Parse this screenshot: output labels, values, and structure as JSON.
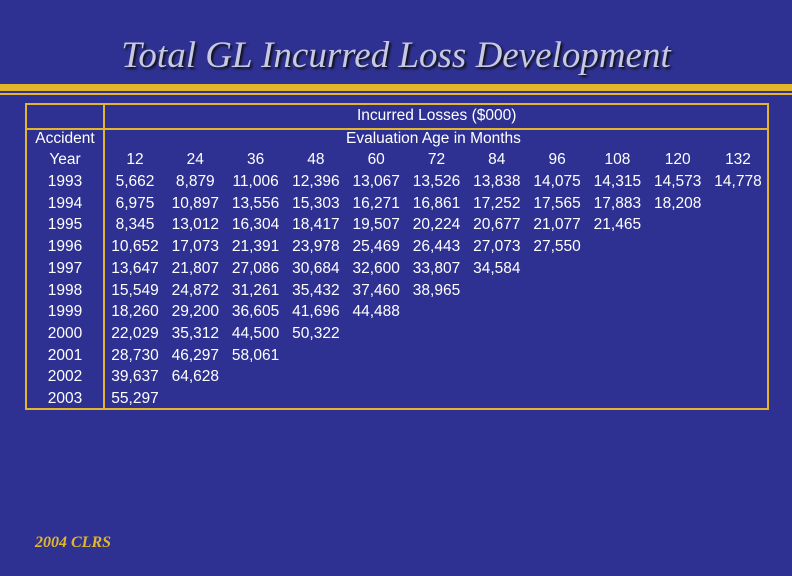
{
  "title": "Total GL Incurred Loss Development",
  "footer": "2004 CLRS",
  "table": {
    "heading_top": "Incurred Losses ($000)",
    "heading_sub": "Evaluation Age in Months",
    "row_header_line1": "Accident",
    "row_header_line2": "Year",
    "ages": [
      "12",
      "24",
      "36",
      "48",
      "60",
      "72",
      "84",
      "96",
      "108",
      "120",
      "132"
    ],
    "rows": [
      {
        "year": "1993",
        "values": [
          "5,662",
          "8,879",
          "11,006",
          "12,396",
          "13,067",
          "13,526",
          "13,838",
          "14,075",
          "14,315",
          "14,573",
          "14,778"
        ]
      },
      {
        "year": "1994",
        "values": [
          "6,975",
          "10,897",
          "13,556",
          "15,303",
          "16,271",
          "16,861",
          "17,252",
          "17,565",
          "17,883",
          "18,208"
        ]
      },
      {
        "year": "1995",
        "values": [
          "8,345",
          "13,012",
          "16,304",
          "18,417",
          "19,507",
          "20,224",
          "20,677",
          "21,077",
          "21,465"
        ]
      },
      {
        "year": "1996",
        "values": [
          "10,652",
          "17,073",
          "21,391",
          "23,978",
          "25,469",
          "26,443",
          "27,073",
          "27,550"
        ]
      },
      {
        "year": "1997",
        "values": [
          "13,647",
          "21,807",
          "27,086",
          "30,684",
          "32,600",
          "33,807",
          "34,584"
        ]
      },
      {
        "year": "1998",
        "values": [
          "15,549",
          "24,872",
          "31,261",
          "35,432",
          "37,460",
          "38,965"
        ]
      },
      {
        "year": "1999",
        "values": [
          "18,260",
          "29,200",
          "36,605",
          "41,696",
          "44,488"
        ]
      },
      {
        "year": "2000",
        "values": [
          "22,029",
          "35,312",
          "44,500",
          "50,322"
        ]
      },
      {
        "year": "2001",
        "values": [
          "28,730",
          "46,297",
          "58,061"
        ]
      },
      {
        "year": "2002",
        "values": [
          "39,637",
          "64,628"
        ]
      },
      {
        "year": "2003",
        "values": [
          "55,297"
        ]
      }
    ]
  }
}
